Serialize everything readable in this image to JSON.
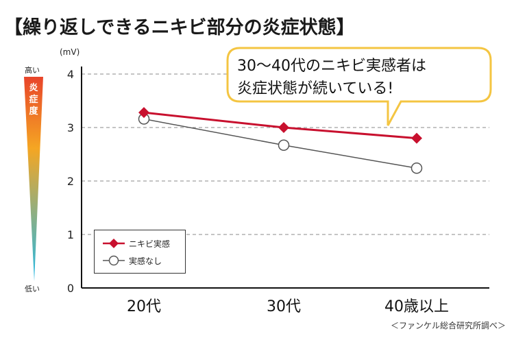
{
  "title": "【繰り返しできるニキビ部分の炎症状態】",
  "source": "＜ファンケル総合研究所調べ＞",
  "callout": {
    "line1": "30〜40代のニキビ実感者は",
    "line2": "炎症状態が続いている!"
  },
  "scale": {
    "top_label": "高い",
    "bottom_label": "低い",
    "mid_label": [
      "炎",
      "症",
      "度"
    ]
  },
  "colors": {
    "series1": "#c8102e",
    "series2": "#555555",
    "callout_border": "#f4c542",
    "scale_top": "#e8442a",
    "scale_mid": "#f5a623",
    "scale_bottom": "#22b8e6"
  },
  "chart_data": {
    "type": "line",
    "categories": [
      "20代",
      "30代",
      "40歳以上"
    ],
    "ylabel": "(mV)",
    "ylim": [
      0,
      4
    ],
    "yticks": [
      "0",
      "1",
      "2",
      "3",
      "4"
    ],
    "grid": true,
    "legend_position": "bottom-left",
    "series": [
      {
        "name": "ニキビ実感",
        "marker": "diamond",
        "values": [
          3.28,
          3.0,
          2.8
        ]
      },
      {
        "name": "実感なし",
        "marker": "circle",
        "values": [
          3.16,
          2.67,
          2.24
        ]
      }
    ]
  }
}
